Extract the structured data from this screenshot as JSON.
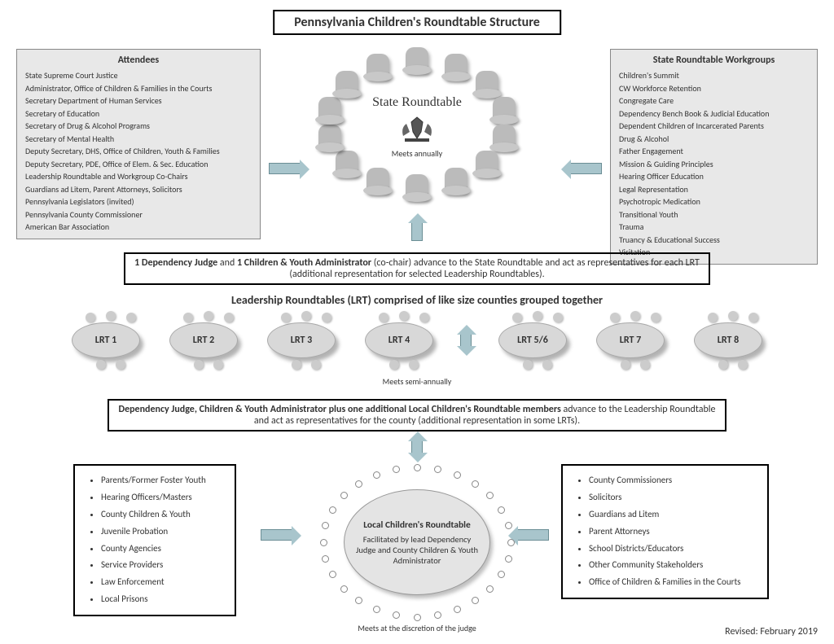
{
  "title": "Pennsylvania Children's Roundtable Structure",
  "attendees": {
    "header": "Attendees",
    "items": [
      "State Supreme Court Justice",
      "Administrator, Office of Children & Families in the Courts",
      "Secretary Department of Human Services",
      "Secretary of Education",
      "Secretary of Drug & Alcohol Programs",
      "Secretary of Mental Health",
      "Deputy Secretary, DHS, Office of Children, Youth & Families",
      "Deputy Secretary, PDE, Office of Elem. & Sec. Education",
      "Leadership Roundtable and Workgroup Co-Chairs",
      "Guardians ad Litem, Parent Attorneys, Solicitors",
      "Pennsylvania Legislators (invited)",
      "Pennsylvania County Commissioner",
      "American Bar Association"
    ]
  },
  "workgroups": {
    "header": "State Roundtable Workgroups",
    "items": [
      "Children's Summit",
      "CW Workforce Retention",
      "Congregate Care",
      "Dependency Bench Book & Judicial Education",
      "Dependent Children of Incarcerated Parents",
      "Drug & Alcohol",
      "Father Engagement",
      "Mission & Guiding Principles",
      "Hearing Officer Education",
      "Legal Representation",
      "Psychotropic Medication",
      "Transitional Youth",
      "Trauma",
      "Truancy & Educational Success",
      "Visitation"
    ]
  },
  "state_roundtable": {
    "title": "State Roundtable",
    "meets": "Meets annually"
  },
  "band1_html": "<b>1 Dependency Judge</b> and <b>1 Children & Youth Administrator</b> (co-chair) advance to the State Roundtable and act as representatives for each LRT (additional representation for selected Leadership Roundtables).",
  "lrt_heading": "Leadership Roundtables (LRT) comprised of like size counties grouped together",
  "lrt_labels": [
    "LRT 1",
    "LRT 2",
    "LRT 3",
    "LRT 4",
    "LRT 5/6",
    "LRT 7",
    "LRT 8"
  ],
  "meets_semi": "Meets semi-annually",
  "band2_html": "<b>Dependency Judge, Children & Youth Administrator plus one additional Local Children's Roundtable members</b> advance to the Leadership Roundtable and act as representatives for the county (additional representation in some LRTs).",
  "local_left": [
    "Parents/Former Foster Youth",
    "Hearing Officers/Masters",
    "County Children & Youth",
    "Juvenile Probation",
    "County Agencies",
    "Service Providers",
    "Law Enforcement",
    "Local Prisons"
  ],
  "local_right": [
    "County Commissioners",
    "Solicitors",
    "Guardians ad Litem",
    "Parent Attorneys",
    "School Districts/Educators",
    "Other Community Stakeholders",
    "Office of Children & Families in the Courts"
  ],
  "local_roundtable": {
    "title": "Local Children's Roundtable",
    "subtitle": "Facilitated by lead Dependency Judge and County Children & Youth Administrator",
    "meets": "Meets at the discretion of the judge"
  },
  "revised": "Revised: February 2019",
  "style": {
    "arrow_color": "#a8c5cc",
    "panel_bg": "#e8e8e8",
    "num_chairs": 14,
    "num_dots": 28
  }
}
